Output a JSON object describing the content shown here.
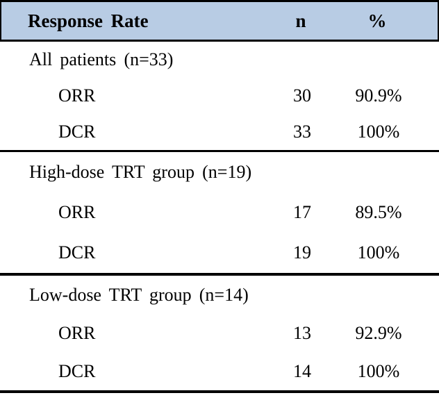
{
  "table": {
    "header_bg": "#B8CCE4",
    "border_color": "#000000",
    "columns": [
      "Response Rate",
      "n",
      "%"
    ],
    "sections": [
      {
        "title": "All patients (n=33)",
        "rows": [
          {
            "label": "ORR",
            "n": "30",
            "pct": "90.9%"
          },
          {
            "label": "DCR",
            "n": "33",
            "pct": "100%"
          }
        ]
      },
      {
        "title": "High-dose TRT group (n=19)",
        "rows": [
          {
            "label": "ORR",
            "n": "17",
            "pct": "89.5%"
          },
          {
            "label": "DCR",
            "n": "19",
            "pct": "100%"
          }
        ]
      },
      {
        "title": "Low-dose TRT group (n=14)",
        "rows": [
          {
            "label": "ORR",
            "n": "13",
            "pct": "92.9%"
          },
          {
            "label": "DCR",
            "n": "14",
            "pct": "100%"
          }
        ]
      }
    ]
  },
  "chart_data": {
    "type": "table",
    "title": "Response Rate",
    "columns": [
      "Response Rate",
      "n",
      "%"
    ],
    "rows": [
      [
        "All patients (n=33)",
        "",
        ""
      ],
      [
        "ORR",
        "30",
        "90.9%"
      ],
      [
        "DCR",
        "33",
        "100%"
      ],
      [
        "High-dose TRT group (n=19)",
        "",
        ""
      ],
      [
        "ORR",
        "17",
        "89.5%"
      ],
      [
        "DCR",
        "19",
        "100%"
      ],
      [
        "Low-dose TRT group (n=14)",
        "",
        ""
      ],
      [
        "ORR",
        "13",
        "92.9%"
      ],
      [
        "DCR",
        "14",
        "100%"
      ]
    ]
  }
}
